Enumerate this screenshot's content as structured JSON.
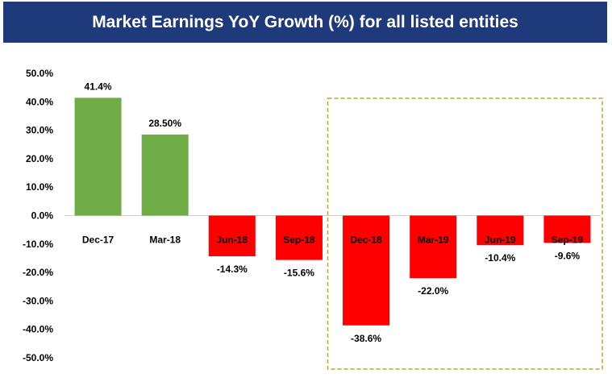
{
  "chart_data": {
    "type": "bar",
    "title": "Market Earnings YoY Growth (%) for all listed entities",
    "categories": [
      "Dec-17",
      "Mar-18",
      "Jun-18",
      "Sep-18",
      "Dec-18",
      "Mar-19",
      "Jun-19",
      "Sep-19"
    ],
    "values": [
      41.4,
      28.5,
      -14.3,
      -15.6,
      -38.6,
      -22.0,
      -10.4,
      -9.6
    ],
    "value_labels": [
      "41.4%",
      "28.50%",
      "-14.3%",
      "-15.6%",
      "-38.6%",
      "-22.0%",
      "-10.4%",
      "-9.6%"
    ],
    "y_ticks": [
      "50.0%",
      "40.0%",
      "30.0%",
      "20.0%",
      "10.0%",
      "0.0%",
      "-10.0%",
      "-20.0%",
      "-30.0%",
      "-40.0%",
      "-50.0%"
    ],
    "ylim": [
      -50,
      50
    ],
    "xlabel": "",
    "ylabel": "",
    "grid": false,
    "highlight": {
      "from_category": "Dec-18",
      "to_category": "Sep-19",
      "style": "dashed-box"
    }
  },
  "colors": {
    "title_bg": "#1f3a7a",
    "positive": "#70ad47",
    "negative": "#ff0000",
    "highlight": "#c9a227",
    "axis": "#d0d0d0"
  }
}
